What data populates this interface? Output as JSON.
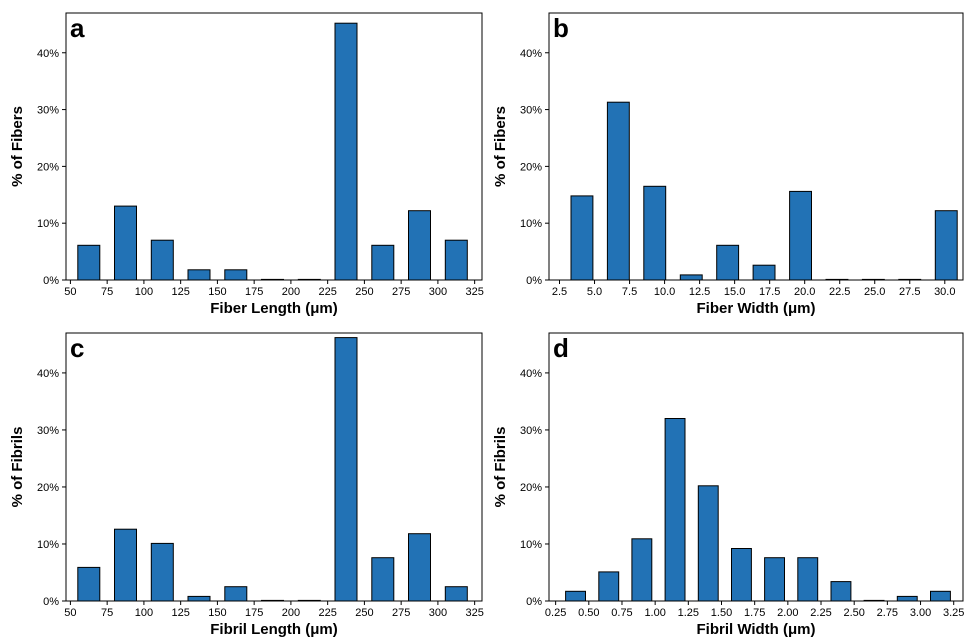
{
  "colors": {
    "bar_fill": "#2272b5",
    "bar_edge": "#000000",
    "background": "#ffffff"
  },
  "chart_data": [
    {
      "type": "bar",
      "panel": "a",
      "xlabel": "Fiber Length (μm)",
      "ylabel": "% of Fibers",
      "xlim": [
        47,
        330
      ],
      "ylim": [
        0,
        0.47
      ],
      "xticks": [
        50,
        75,
        100,
        125,
        150,
        175,
        200,
        225,
        250,
        275,
        300,
        325
      ],
      "xtick_labels": [
        "50",
        "75",
        "100",
        "125",
        "150",
        "175",
        "200",
        "225",
        "250",
        "275",
        "300",
        "325"
      ],
      "yticks": [
        0,
        0.1,
        0.2,
        0.3,
        0.4
      ],
      "ytick_labels": [
        "0%",
        "10%",
        "20%",
        "30%",
        "40%"
      ],
      "bin_width": 25,
      "bars": [
        {
          "x": 62.5,
          "value": 0.061
        },
        {
          "x": 87.5,
          "value": 0.13
        },
        {
          "x": 112.5,
          "value": 0.07
        },
        {
          "x": 137.5,
          "value": 0.018
        },
        {
          "x": 162.5,
          "value": 0.018
        },
        {
          "x": 187.5,
          "value": 0.0
        },
        {
          "x": 212.5,
          "value": 0.0
        },
        {
          "x": 237.5,
          "value": 0.452
        },
        {
          "x": 262.5,
          "value": 0.061
        },
        {
          "x": 287.5,
          "value": 0.122
        },
        {
          "x": 312.5,
          "value": 0.07
        }
      ],
      "grid": false
    },
    {
      "type": "bar",
      "panel": "b",
      "xlabel": "Fiber Width (μm)",
      "ylabel": "% of Fibers",
      "xlim": [
        1.75,
        31.3
      ],
      "ylim": [
        0,
        0.47
      ],
      "xticks": [
        2.5,
        5,
        7.5,
        10,
        12.5,
        15,
        17.5,
        20,
        22.5,
        25,
        27.5,
        30
      ],
      "xtick_labels": [
        "2.5",
        "5.0",
        "7.5",
        "10.0",
        "12.5",
        "15.0",
        "17.5",
        "20.0",
        "22.5",
        "25.0",
        "27.5",
        "30.0"
      ],
      "yticks": [
        0,
        0.1,
        0.2,
        0.3,
        0.4
      ],
      "ytick_labels": [
        "0%",
        "10%",
        "20%",
        "30%",
        "40%"
      ],
      "bin_width": 2.6,
      "bars": [
        {
          "x": 4.1,
          "value": 0.148
        },
        {
          "x": 6.7,
          "value": 0.313
        },
        {
          "x": 9.3,
          "value": 0.165
        },
        {
          "x": 11.9,
          "value": 0.009
        },
        {
          "x": 14.5,
          "value": 0.061
        },
        {
          "x": 17.1,
          "value": 0.026
        },
        {
          "x": 19.7,
          "value": 0.156
        },
        {
          "x": 22.3,
          "value": 0.0
        },
        {
          "x": 24.9,
          "value": 0.0
        },
        {
          "x": 27.5,
          "value": 0.0
        },
        {
          "x": 30.1,
          "value": 0.122
        }
      ],
      "grid": false
    },
    {
      "type": "bar",
      "panel": "c",
      "xlabel": "Fibril Length (μm)",
      "ylabel": "% of Fibrils",
      "xlim": [
        47,
        330
      ],
      "ylim": [
        0,
        0.47
      ],
      "xticks": [
        50,
        75,
        100,
        125,
        150,
        175,
        200,
        225,
        250,
        275,
        300,
        325
      ],
      "xtick_labels": [
        "50",
        "75",
        "100",
        "125",
        "150",
        "175",
        "200",
        "225",
        "250",
        "275",
        "300",
        "325"
      ],
      "yticks": [
        0,
        0.1,
        0.2,
        0.3,
        0.4
      ],
      "ytick_labels": [
        "0%",
        "10%",
        "20%",
        "30%",
        "40%"
      ],
      "bin_width": 25,
      "bars": [
        {
          "x": 62.5,
          "value": 0.059
        },
        {
          "x": 87.5,
          "value": 0.126
        },
        {
          "x": 112.5,
          "value": 0.101
        },
        {
          "x": 137.5,
          "value": 0.008
        },
        {
          "x": 162.5,
          "value": 0.025
        },
        {
          "x": 187.5,
          "value": 0.0
        },
        {
          "x": 212.5,
          "value": 0.0
        },
        {
          "x": 237.5,
          "value": 0.462
        },
        {
          "x": 262.5,
          "value": 0.076
        },
        {
          "x": 287.5,
          "value": 0.118
        },
        {
          "x": 312.5,
          "value": 0.025
        }
      ],
      "grid": false
    },
    {
      "type": "bar",
      "panel": "d",
      "xlabel": "Fibril Width (μm)",
      "ylabel": "% of Fibrils",
      "xlim": [
        0.2,
        3.32
      ],
      "ylim": [
        0,
        0.47
      ],
      "xticks": [
        0.25,
        0.5,
        0.75,
        1.0,
        1.25,
        1.5,
        1.75,
        2.0,
        2.25,
        2.5,
        2.75,
        3.0,
        3.25
      ],
      "xtick_labels": [
        "0.25",
        "0.50",
        "0.75",
        "1.00",
        "1.25",
        "1.50",
        "1.75",
        "2.00",
        "2.25",
        "2.50",
        "2.75",
        "3.00",
        "3.25"
      ],
      "yticks": [
        0,
        0.1,
        0.2,
        0.3,
        0.4
      ],
      "ytick_labels": [
        "0%",
        "10%",
        "20%",
        "30%",
        "40%"
      ],
      "bin_width": 0.25,
      "bars": [
        {
          "x": 0.4,
          "value": 0.017
        },
        {
          "x": 0.65,
          "value": 0.051
        },
        {
          "x": 0.9,
          "value": 0.109
        },
        {
          "x": 1.15,
          "value": 0.32
        },
        {
          "x": 1.4,
          "value": 0.202
        },
        {
          "x": 1.65,
          "value": 0.092
        },
        {
          "x": 1.9,
          "value": 0.076
        },
        {
          "x": 2.15,
          "value": 0.076
        },
        {
          "x": 2.4,
          "value": 0.034
        },
        {
          "x": 2.65,
          "value": 0.0
        },
        {
          "x": 2.9,
          "value": 0.008
        },
        {
          "x": 3.15,
          "value": 0.017
        }
      ],
      "grid": false
    }
  ]
}
